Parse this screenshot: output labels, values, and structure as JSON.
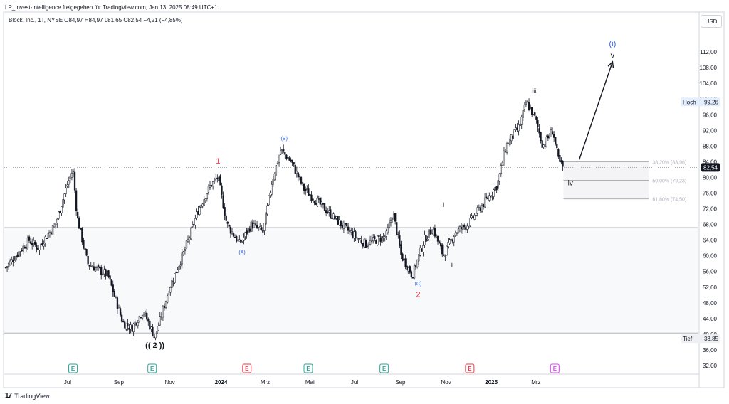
{
  "header": {
    "publish_line": "LP_Invest-Intelligence freigegeben für TradingView.com, Jan 13, 2025 08:49 UTC+1",
    "symbol_line": "Block, Inc., 1T, NYSE  O84,97  H84,97  L81,65  C82,54  −4,21 (−4,85%)",
    "currency": "USD"
  },
  "brand": {
    "logo_text": "17",
    "name": "TradingView"
  },
  "chart_data": {
    "type": "candlestick",
    "title": "Block, Inc., 1T, NYSE",
    "ylim": [
      30,
      118
    ],
    "y_ticks": [
      32,
      36,
      40,
      44,
      48,
      52,
      56,
      60,
      64,
      68,
      72,
      76,
      80,
      84,
      88,
      92,
      96,
      100,
      104,
      108,
      112
    ],
    "x_ticks": [
      {
        "label": "Jul",
        "t": 0.115
      },
      {
        "label": "Sep",
        "t": 0.21
      },
      {
        "label": "Nov",
        "t": 0.305
      },
      {
        "label": "2024",
        "t": 0.4
      },
      {
        "label": "Mrz",
        "t": 0.482
      },
      {
        "label": "Mai",
        "t": 0.565
      },
      {
        "label": "Jul",
        "t": 0.648
      },
      {
        "label": "Sep",
        "t": 0.733
      },
      {
        "label": "Nov",
        "t": 0.818
      },
      {
        "label": "2025",
        "t": 0.902
      },
      {
        "label": "Mrz",
        "t": 0.985
      }
    ],
    "price_path": [
      [
        0.0,
        57
      ],
      [
        0.04,
        64
      ],
      [
        0.055,
        62
      ],
      [
        0.085,
        68
      ],
      [
        0.105,
        78
      ],
      [
        0.115,
        82
      ],
      [
        0.122,
        70
      ],
      [
        0.14,
        58
      ],
      [
        0.175,
        55
      ],
      [
        0.2,
        43
      ],
      [
        0.215,
        41.5
      ],
      [
        0.235,
        46
      ],
      [
        0.255,
        39
      ],
      [
        0.28,
        52
      ],
      [
        0.305,
        61
      ],
      [
        0.33,
        72
      ],
      [
        0.35,
        78
      ],
      [
        0.363,
        80
      ],
      [
        0.378,
        68
      ],
      [
        0.4,
        63
      ],
      [
        0.42,
        68
      ],
      [
        0.44,
        66
      ],
      [
        0.455,
        79
      ],
      [
        0.47,
        87
      ],
      [
        0.488,
        84
      ],
      [
        0.51,
        77
      ],
      [
        0.545,
        72
      ],
      [
        0.58,
        67
      ],
      [
        0.615,
        63
      ],
      [
        0.65,
        65
      ],
      [
        0.662,
        71
      ],
      [
        0.676,
        60
      ],
      [
        0.695,
        55
      ],
      [
        0.715,
        64
      ],
      [
        0.73,
        67
      ],
      [
        0.748,
        60
      ],
      [
        0.768,
        66
      ],
      [
        0.79,
        68
      ],
      [
        0.82,
        74
      ],
      [
        0.84,
        78
      ],
      [
        0.855,
        88
      ],
      [
        0.878,
        93
      ],
      [
        0.89,
        99.3
      ],
      [
        0.905,
        95
      ],
      [
        0.918,
        88
      ],
      [
        0.935,
        92
      ],
      [
        0.945,
        84
      ],
      [
        0.952,
        82.54
      ]
    ],
    "lows": {
      "label": "Tief",
      "value": 38.85
    },
    "highs": {
      "label": "Hoch",
      "value": 99.26
    },
    "last": {
      "value": 82.54,
      "label": "82,54"
    },
    "fib_levels": [
      {
        "label": "38,20% (83,96)",
        "value": 83.96
      },
      {
        "label": "50,00% (79,23)",
        "value": 79.23
      },
      {
        "label": "61,80% (74,50)",
        "value": 74.5
      }
    ],
    "horizontal_lines": [
      67.2,
      40.3
    ],
    "wave_labels": [
      {
        "text": "(( 2 ))",
        "t": 0.255,
        "v": 36.5,
        "color": "#131722",
        "size": 11,
        "bold": true
      },
      {
        "text": "1",
        "t": 0.363,
        "v": 83.5,
        "color": "#f23645",
        "size": 11
      },
      {
        "text": "(A)",
        "t": 0.404,
        "v": 60.5,
        "color": "#2962ff",
        "size": 7
      },
      {
        "text": "(B)",
        "t": 0.476,
        "v": 89.5,
        "color": "#2962ff",
        "size": 7
      },
      {
        "text": "(C)",
        "t": 0.705,
        "v": 52.5,
        "color": "#2962ff",
        "size": 7
      },
      {
        "text": "2",
        "t": 0.705,
        "v": 49.5,
        "color": "#f23645",
        "size": 11
      },
      {
        "text": "i",
        "t": 0.748,
        "v": 72.5,
        "color": "#131722",
        "size": 9
      },
      {
        "text": "ii",
        "t": 0.763,
        "v": 57.2,
        "color": "#131722",
        "size": 9
      },
      {
        "text": "iii",
        "t": 0.903,
        "v": 101.5,
        "color": "#131722",
        "size": 9
      },
      {
        "text": "iv",
        "t": 0.965,
        "v": 78.0,
        "color": "#131722",
        "size": 10
      },
      {
        "text": "v",
        "t": 1.037,
        "v": 110.5,
        "color": "#131722",
        "size": 11
      },
      {
        "text": "(i)",
        "t": 1.037,
        "v": 113.5,
        "color": "#2962ff",
        "size": 11
      }
    ],
    "projection": {
      "from": [
        0.98,
        84.5
      ],
      "to": [
        1.037,
        109.5
      ]
    },
    "earnings_markers": [
      {
        "t": 0.125,
        "color": "#26a69a"
      },
      {
        "t": 0.272,
        "color": "#26a69a"
      },
      {
        "t": 0.448,
        "color": "#f23645"
      },
      {
        "t": 0.562,
        "color": "#26a69a"
      },
      {
        "t": 0.703,
        "color": "#26a69a"
      },
      {
        "t": 0.862,
        "color": "#f23645"
      },
      {
        "t": 1.02,
        "color": "#e040fb"
      }
    ],
    "colors": {
      "candle": "#131722",
      "grid": "#f0f3fa",
      "label_bg": "#e8eaf0",
      "last_bg": "#131722"
    }
  }
}
